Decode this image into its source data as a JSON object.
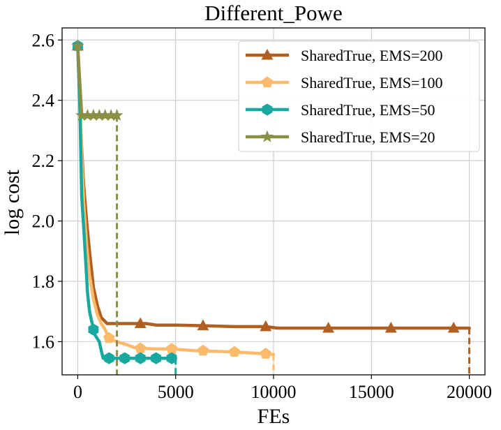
{
  "chart_data": {
    "type": "line",
    "title": "Different_Powe",
    "xlabel": "FEs",
    "ylabel": "log cost",
    "xlim": [
      -800,
      20800
    ],
    "ylim": [
      1.49,
      2.64
    ],
    "xticks": [
      0,
      5000,
      10000,
      15000,
      20000
    ],
    "yticks": [
      1.6,
      1.8,
      2.0,
      2.2,
      2.4,
      2.6
    ],
    "xtick_labels": [
      "0",
      "5000",
      "10000",
      "15000",
      "20000"
    ],
    "ytick_labels": [
      "1.6",
      "1.8",
      "2.0",
      "2.2",
      "2.4",
      "2.6"
    ],
    "grid": true,
    "legend_position": "top-right",
    "series": [
      {
        "name": "SharedTrue, EMS=200",
        "color": "#b15e21",
        "marker": "triangle",
        "x": [
          0,
          150,
          300,
          450,
          600,
          800,
          1000,
          1200,
          1500,
          2000,
          2500,
          3000,
          3500,
          4000,
          5000,
          6400,
          8000,
          9600,
          10200,
          12800,
          16000,
          19200,
          20000
        ],
        "y": [
          2.58,
          2.3,
          2.12,
          2.0,
          1.9,
          1.78,
          1.72,
          1.68,
          1.66,
          1.66,
          1.66,
          1.66,
          1.66,
          1.655,
          1.655,
          1.653,
          1.65,
          1.65,
          1.645,
          1.645,
          1.645,
          1.645,
          1.645
        ],
        "markers": [
          [
            0,
            2.58
          ],
          [
            3200,
            1.66
          ],
          [
            6400,
            1.653
          ],
          [
            9600,
            1.65
          ],
          [
            12800,
            1.645
          ],
          [
            16000,
            1.645
          ],
          [
            19200,
            1.645
          ]
        ],
        "drop_to": 1.49
      },
      {
        "name": "SharedTrue, EMS=100",
        "color": "#fdba6b",
        "marker": "pentagon",
        "x": [
          0,
          100,
          200,
          300,
          450,
          600,
          800,
          1000,
          1200,
          1400,
          1600,
          2000,
          2500,
          3000,
          4000,
          5000,
          6000,
          7000,
          8000,
          9000,
          10000
        ],
        "y": [
          2.58,
          2.45,
          2.22,
          2.06,
          1.92,
          1.82,
          1.74,
          1.69,
          1.66,
          1.64,
          1.61,
          1.6,
          1.59,
          1.578,
          1.576,
          1.575,
          1.57,
          1.568,
          1.566,
          1.562,
          1.558
        ],
        "markers": [
          [
            0,
            2.58
          ],
          [
            1600,
            1.612
          ],
          [
            3200,
            1.578
          ],
          [
            4800,
            1.576
          ],
          [
            6400,
            1.57
          ],
          [
            8000,
            1.566
          ],
          [
            9600,
            1.56
          ]
        ],
        "drop_to": 1.49
      },
      {
        "name": "SharedTrue, EMS=50",
        "color": "#19a8a0",
        "marker": "hexagon",
        "x": [
          0,
          100,
          200,
          300,
          400,
          500,
          600,
          700,
          800,
          900,
          1000,
          1100,
          1200,
          1300,
          2000,
          3000,
          4000,
          5000
        ],
        "y": [
          2.58,
          2.4,
          2.08,
          1.98,
          1.87,
          1.76,
          1.7,
          1.67,
          1.645,
          1.62,
          1.61,
          1.6,
          1.57,
          1.545,
          1.545,
          1.545,
          1.545,
          1.545
        ],
        "markers": [
          [
            0,
            2.58
          ],
          [
            800,
            1.64
          ],
          [
            1600,
            1.545
          ],
          [
            2400,
            1.545
          ],
          [
            3200,
            1.545
          ],
          [
            4000,
            1.545
          ],
          [
            4800,
            1.545
          ]
        ],
        "drop_to": 1.49
      },
      {
        "name": "SharedTrue, EMS=20",
        "color": "#8a8f43",
        "marker": "star",
        "x": [
          0,
          200,
          2000
        ],
        "y": [
          2.58,
          2.35,
          2.35
        ],
        "markers": [
          [
            0,
            2.58
          ],
          [
            200,
            2.35
          ],
          [
            500,
            2.35
          ],
          [
            800,
            2.35
          ],
          [
            1100,
            2.35
          ],
          [
            1400,
            2.35
          ],
          [
            1700,
            2.35
          ],
          [
            2000,
            2.35
          ]
        ],
        "drop_to": 1.49
      }
    ]
  }
}
